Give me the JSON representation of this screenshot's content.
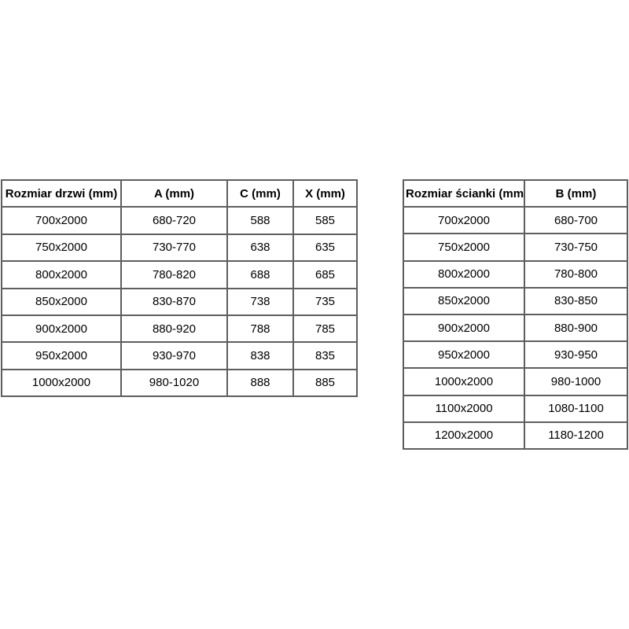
{
  "page": {
    "background": "#ffffff",
    "text_color": "#000000",
    "border_color": "#5e5e5e"
  },
  "chart_data": [
    {
      "type": "table",
      "name": "door-sizes",
      "headers": [
        "Rozmiar drzwi (mm)",
        "A (mm)",
        "C (mm)",
        "X (mm)"
      ],
      "rows": [
        [
          "700x2000",
          "680-720",
          "588",
          "585"
        ],
        [
          "750x2000",
          "730-770",
          "638",
          "635"
        ],
        [
          "800x2000",
          "780-820",
          "688",
          "685"
        ],
        [
          "850x2000",
          "830-870",
          "738",
          "735"
        ],
        [
          "900x2000",
          "880-920",
          "788",
          "785"
        ],
        [
          "950x2000",
          "930-970",
          "838",
          "835"
        ],
        [
          "1000x2000",
          "980-1020",
          "888",
          "885"
        ]
      ]
    },
    {
      "type": "table",
      "name": "wall-sizes",
      "headers": [
        "Rozmiar ścianki (mm)",
        "B (mm)"
      ],
      "rows": [
        [
          "700x2000",
          "680-700"
        ],
        [
          "750x2000",
          "730-750"
        ],
        [
          "800x2000",
          "780-800"
        ],
        [
          "850x2000",
          "830-850"
        ],
        [
          "900x2000",
          "880-900"
        ],
        [
          "950x2000",
          "930-950"
        ],
        [
          "1000x2000",
          "980-1000"
        ],
        [
          "1100x2000",
          "1080-1100"
        ],
        [
          "1200x2000",
          "1180-1200"
        ]
      ]
    }
  ]
}
